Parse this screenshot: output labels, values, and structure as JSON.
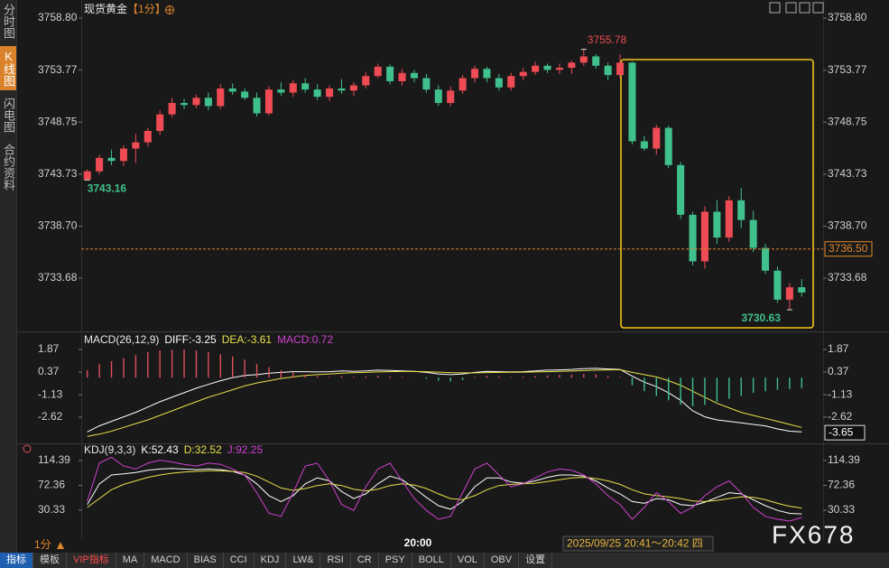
{
  "ui": {
    "sidebar": [
      "分时图",
      "K线图",
      "闪电图",
      "合约资料"
    ],
    "period_selector": "1分",
    "time_label": "20:00",
    "cursor_time": "2025/09/25 20:41～20:42 四",
    "watermark": "FX678",
    "toolbar": [
      "指标",
      "模板",
      "VIP指标",
      "MA",
      "MACD",
      "BIAS",
      "CCI",
      "KDJ",
      "LW&",
      "RSI",
      "CR",
      "PSY",
      "BOLL",
      "VOL",
      "OBV",
      "设置"
    ]
  },
  "chart_data": [
    {
      "type": "candlestick",
      "title": "现货黄金",
      "period": "【1分】",
      "up_color": "#ee4b54",
      "down_color": "#3fc08c",
      "ylim": [
        3728.71,
        3759.85
      ],
      "yticks": [
        3733.68,
        {
          "value": 3738.7,
          "label": "3738.70"
        },
        3743.73,
        3748.75,
        3753.77,
        {
          "value": 3758.8,
          "label": "3758.80"
        }
      ],
      "last_price": {
        "value": 3736.5,
        "label": "3736.50"
      },
      "annotations": [
        3755.78,
        3730.63,
        3743.16
      ],
      "open": [
        3743.2,
        3744.0,
        3745.3,
        3745.0,
        3746.2,
        3746.8,
        3747.9,
        3749.5,
        3750.6,
        3750.4,
        3751.1,
        3750.3,
        3752.0,
        3751.7,
        3751.1,
        3749.6,
        3751.9,
        3751.6,
        3752.5,
        3751.9,
        3751.2,
        3752.0,
        3751.8,
        3752.3,
        3753.2,
        3754.1,
        3752.7,
        3753.5,
        3753.0,
        3751.9,
        3750.6,
        3751.8,
        3753.0,
        3753.9,
        3753.0,
        3752.1,
        3753.2,
        3753.6,
        3754.2,
        3753.8,
        3754.0,
        3754.5,
        3755.1,
        3754.2,
        3753.3,
        3754.5,
        3746.9,
        3746.2,
        3748.2,
        3744.6,
        3739.8,
        3735.3,
        3740.1,
        3737.6,
        3741.2,
        3739.3,
        3736.6,
        3734.4,
        3731.6,
        3732.8
      ],
      "high": [
        3744.2,
        3745.6,
        3746.1,
        3746.5,
        3747.6,
        3748.2,
        3749.9,
        3751.1,
        3751.0,
        3751.4,
        3751.6,
        3752.4,
        3752.5,
        3752.0,
        3751.6,
        3752.2,
        3752.6,
        3752.8,
        3753.0,
        3752.4,
        3752.3,
        3752.9,
        3752.6,
        3753.6,
        3754.4,
        3754.3,
        3753.9,
        3753.8,
        3753.4,
        3752.3,
        3752.2,
        3753.3,
        3754.2,
        3754.1,
        3753.4,
        3753.5,
        3754.0,
        3754.6,
        3754.4,
        3754.4,
        3754.7,
        3755.78,
        3755.3,
        3754.5,
        3755.3,
        3754.6,
        3747.4,
        3748.5,
        3748.4,
        3744.9,
        3740.1,
        3740.6,
        3741.2,
        3741.6,
        3742.4,
        3740.2,
        3737.0,
        3734.8,
        3733.2,
        3733.6
      ],
      "low": [
        3743.16,
        3743.7,
        3744.6,
        3744.5,
        3744.8,
        3746.4,
        3747.5,
        3749.2,
        3750.0,
        3750.1,
        3749.9,
        3750.0,
        3751.4,
        3750.9,
        3749.3,
        3749.4,
        3751.3,
        3751.2,
        3751.6,
        3750.9,
        3750.8,
        3751.5,
        3751.3,
        3752.0,
        3753.0,
        3752.4,
        3752.3,
        3752.6,
        3751.6,
        3750.3,
        3750.3,
        3751.5,
        3752.6,
        3752.6,
        3751.8,
        3751.8,
        3752.8,
        3753.3,
        3753.5,
        3753.4,
        3753.4,
        3754.2,
        3753.9,
        3752.8,
        3753.0,
        3746.6,
        3746.0,
        3745.6,
        3744.3,
        3739.4,
        3734.9,
        3734.6,
        3737.0,
        3737.2,
        3738.5,
        3736.2,
        3734.1,
        3731.3,
        3730.63,
        3731.9
      ],
      "close": [
        3744.0,
        3745.3,
        3745.0,
        3746.2,
        3746.8,
        3747.9,
        3749.5,
        3750.6,
        3750.4,
        3751.1,
        3750.3,
        3752.0,
        3751.7,
        3751.1,
        3749.6,
        3751.9,
        3751.6,
        3752.5,
        3751.9,
        3751.2,
        3752.0,
        3751.8,
        3752.3,
        3753.2,
        3754.1,
        3752.7,
        3753.5,
        3753.0,
        3751.9,
        3750.6,
        3751.8,
        3753.0,
        3753.9,
        3753.0,
        3752.1,
        3753.2,
        3753.6,
        3754.2,
        3753.8,
        3754.0,
        3754.5,
        3755.1,
        3754.2,
        3753.3,
        3754.5,
        3746.9,
        3746.2,
        3748.2,
        3744.6,
        3739.8,
        3735.3,
        3740.1,
        3737.6,
        3741.2,
        3739.3,
        3736.6,
        3734.4,
        3731.6,
        3732.8,
        3732.3
      ]
    },
    {
      "type": "indicator",
      "title": "MACD(26,12,9)",
      "up_color": "#e0505a",
      "down_color": "#3fc08c",
      "ylim": [
        -4.3,
        2.89
      ],
      "yticks": [
        -2.62,
        -1.13,
        0.37,
        1.87
      ],
      "marker": -3.65,
      "series": [
        {
          "name": "DIFF:-3.25",
          "color": "#ffffff",
          "type": "line",
          "values": [
            -3.6,
            -3.2,
            -2.9,
            -2.6,
            -2.3,
            -1.95,
            -1.6,
            -1.3,
            -1.0,
            -0.7,
            -0.45,
            -0.2,
            0.0,
            0.15,
            0.2,
            0.3,
            0.35,
            0.4,
            0.4,
            0.38,
            0.4,
            0.45,
            0.42,
            0.45,
            0.5,
            0.48,
            0.45,
            0.42,
            0.35,
            0.25,
            0.2,
            0.25,
            0.35,
            0.42,
            0.4,
            0.38,
            0.4,
            0.45,
            0.5,
            0.52,
            0.55,
            0.6,
            0.62,
            0.58,
            0.55,
            0.1,
            -0.3,
            -0.6,
            -1.0,
            -1.5,
            -2.2,
            -2.6,
            -2.8,
            -2.9,
            -3.0,
            -3.1,
            -3.2,
            -3.4,
            -3.55,
            -3.6
          ]
        },
        {
          "name": "DEA:-3.61",
          "color": "#e8e04a",
          "type": "line",
          "values": [
            -3.9,
            -3.75,
            -3.55,
            -3.3,
            -3.05,
            -2.8,
            -2.5,
            -2.2,
            -1.9,
            -1.6,
            -1.3,
            -1.05,
            -0.8,
            -0.55,
            -0.35,
            -0.2,
            -0.05,
            0.05,
            0.15,
            0.2,
            0.25,
            0.3,
            0.33,
            0.35,
            0.38,
            0.4,
            0.41,
            0.41,
            0.4,
            0.37,
            0.34,
            0.32,
            0.32,
            0.34,
            0.35,
            0.36,
            0.37,
            0.38,
            0.4,
            0.42,
            0.44,
            0.47,
            0.5,
            0.52,
            0.53,
            0.35,
            0.2,
            0.05,
            -0.2,
            -0.5,
            -0.9,
            -1.3,
            -1.7,
            -2.0,
            -2.3,
            -2.5,
            -2.7,
            -2.9,
            -3.1,
            -3.3
          ]
        },
        {
          "name": "MACD:0.72",
          "color": "#d040d0",
          "type": "bar",
          "values": [
            0.5,
            0.9,
            1.1,
            1.3,
            1.5,
            1.7,
            1.8,
            1.85,
            1.87,
            1.8,
            1.7,
            1.55,
            1.4,
            1.2,
            0.9,
            0.7,
            0.5,
            0.35,
            0.2,
            0.1,
            0.05,
            0.1,
            0.06,
            0.08,
            0.12,
            0.08,
            0.05,
            0.02,
            -0.08,
            -0.2,
            -0.25,
            -0.15,
            0.05,
            0.12,
            0.08,
            0.04,
            0.06,
            0.1,
            0.15,
            0.18,
            0.2,
            0.25,
            0.22,
            0.12,
            0.05,
            -0.5,
            -0.9,
            -1.2,
            -1.5,
            -1.8,
            -1.9,
            -1.8,
            -1.6,
            -1.4,
            -1.2,
            -1.0,
            -0.9,
            -0.8,
            -0.75,
            -0.7
          ]
        }
      ]
    },
    {
      "type": "indicator",
      "title": "KDJ(9,3,3)",
      "ylim": [
        -20.1,
        141.9
      ],
      "yticks": [
        30.33,
        72.36,
        114.39
      ],
      "series": [
        {
          "name": "K:52.43",
          "color": "#ffffff",
          "type": "line",
          "values": [
            40,
            75,
            90,
            92,
            94,
            98,
            100,
            101,
            100,
            99,
            100,
            99,
            96,
            90,
            75,
            55,
            45,
            55,
            75,
            85,
            80,
            62,
            50,
            58,
            75,
            88,
            82,
            68,
            52,
            38,
            32,
            45,
            70,
            85,
            85,
            78,
            76,
            80,
            86,
            90,
            90,
            88,
            80,
            68,
            58,
            45,
            42,
            50,
            48,
            40,
            38,
            44,
            52,
            60,
            58,
            48,
            38,
            30,
            25,
            24
          ]
        },
        {
          "name": "D:32.52",
          "color": "#e8e04a",
          "type": "line",
          "values": [
            35,
            50,
            65,
            74,
            80,
            86,
            90,
            93,
            95,
            96,
            97,
            97,
            96,
            94,
            88,
            78,
            68,
            64,
            67,
            72,
            75,
            72,
            66,
            63,
            66,
            72,
            75,
            73,
            67,
            58,
            50,
            48,
            55,
            65,
            72,
            74,
            75,
            76,
            79,
            82,
            85,
            86,
            84,
            80,
            74,
            65,
            58,
            55,
            53,
            50,
            46,
            45,
            47,
            50,
            53,
            52,
            48,
            42,
            37,
            34
          ]
        },
        {
          "name": "J:92.25",
          "color": "#d040d0",
          "type": "line",
          "values": [
            45,
            110,
            120,
            105,
            100,
            110,
            115,
            112,
            108,
            105,
            110,
            108,
            100,
            90,
            60,
            25,
            20,
            60,
            105,
            110,
            80,
            40,
            30,
            70,
            100,
            110,
            80,
            50,
            30,
            15,
            20,
            60,
            100,
            110,
            90,
            70,
            75,
            85,
            95,
            100,
            98,
            90,
            75,
            55,
            40,
            15,
            35,
            60,
            45,
            25,
            35,
            55,
            70,
            80,
            60,
            35,
            20,
            15,
            12,
            18
          ]
        }
      ]
    }
  ]
}
